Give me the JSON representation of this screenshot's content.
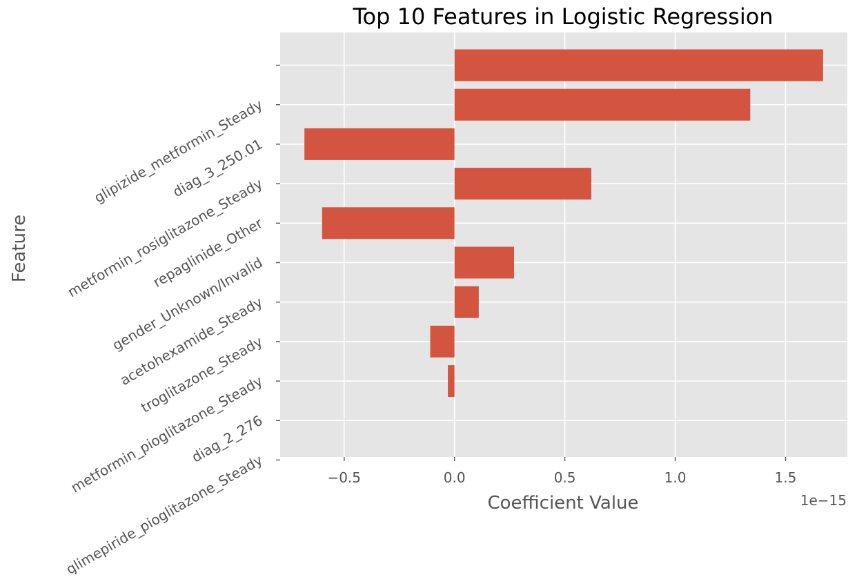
{
  "chart_data": {
    "type": "bar",
    "orientation": "horizontal",
    "title": "Top 10 Features in Logistic Regression",
    "xlabel": "Coefficient Value",
    "ylabel": "Feature",
    "x_offset_label": "1e−15",
    "x_scale_factor": 1e-15,
    "xlim": [
      -0.79,
      1.78
    ],
    "x_ticks": [
      -0.5,
      0.0,
      0.5,
      1.0,
      1.5
    ],
    "x_tick_labels": [
      "−0.5",
      "0.0",
      "0.5",
      "1.0",
      "1.5"
    ],
    "grid": true,
    "legend": "none",
    "bar_color": "#d35540",
    "background_color": "#e5e5e5",
    "gridline_color": "#ffffff",
    "categories": [
      "",
      "glipizide_metformin_Steady",
      "diag_3_250.01",
      "metformin_rosiglitazone_Steady",
      "repaglinide_Other",
      "gender_Unknown/Invalid",
      "acetohexamide_Steady",
      "troglitazone_Steady",
      "metformin_pioglitazone_Steady",
      "diag_2_276",
      "glimepiride_pioglitazone_Steady"
    ],
    "values": [
      1.67,
      1.34,
      -0.68,
      0.62,
      -0.6,
      0.27,
      0.11,
      -0.11,
      -0.03,
      null,
      null
    ]
  }
}
